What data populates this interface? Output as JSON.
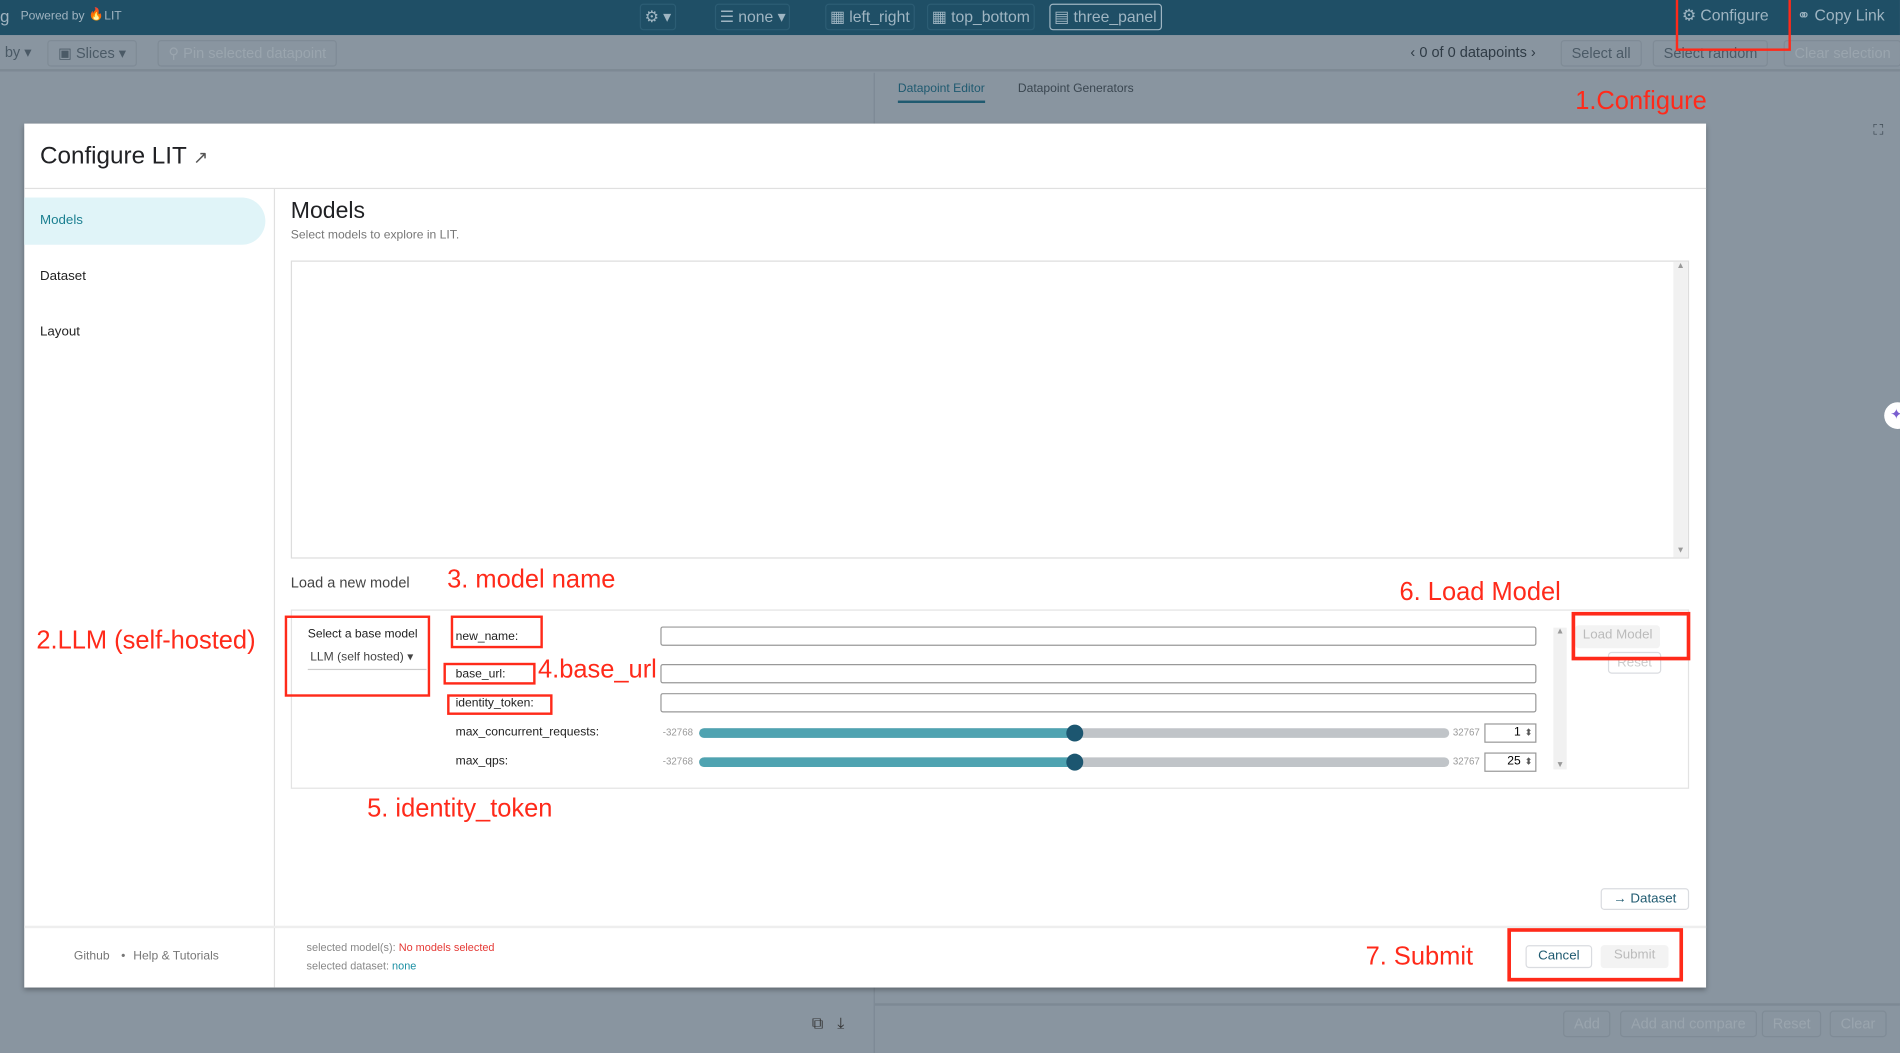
{
  "topbar": {
    "powered_by": "Powered by",
    "lit": "LIT",
    "model_select": "none",
    "layouts": [
      "left_right",
      "top_bottom",
      "three_panel"
    ],
    "configure": "Configure",
    "copy_link": "Copy Link",
    "app_letter": "g"
  },
  "toolbar": {
    "color_by": "by",
    "slices": "Slices",
    "pin": "Pin selected datapoint",
    "datapoint_count": "0 of 0 datapoints",
    "select_all": "Select all",
    "select_random": "Select random",
    "clear_selection": "Clear selection"
  },
  "right_panel": {
    "tabs": [
      "Datapoint Editor",
      "Datapoint Generators"
    ],
    "active_tab": 0,
    "bottom_buttons": [
      "Add",
      "Add and compare",
      "Reset",
      "Clear"
    ]
  },
  "modal": {
    "title": "Configure LIT",
    "sidebar": [
      {
        "label": "Models",
        "active": true
      },
      {
        "label": "Dataset"
      },
      {
        "label": "Layout"
      }
    ],
    "section_title": "Models",
    "section_subtitle": "Select models to explore in LIT.",
    "load_title": "Load a new model",
    "base_model_label": "Select a base model",
    "base_model_value": "LLM (self hosted)",
    "fields": [
      {
        "label": "new_name:",
        "value": ""
      },
      {
        "label": "base_url:",
        "value": ""
      },
      {
        "label": "identity_token:",
        "value": ""
      }
    ],
    "sliders": [
      {
        "label": "max_concurrent_requests:",
        "min": "-32768",
        "max": "32767",
        "value": 1
      },
      {
        "label": "max_qps:",
        "min": "-32768",
        "max": "32767",
        "value": 25
      }
    ],
    "load_model": "Load Model",
    "reset": "Reset",
    "next_dataset": "→ Dataset",
    "footer": {
      "github": "Github",
      "sep": "•",
      "help": "Help & Tutorials",
      "models_label": "selected model(s):",
      "models_value": "No models selected",
      "dataset_label": "selected dataset:",
      "dataset_value": "none",
      "cancel": "Cancel",
      "submit": "Submit"
    }
  },
  "annotations": [
    "1.Configure",
    "2.LLM (self-hosted)",
    "3. model name",
    "4.base_url",
    "5. identity_token",
    "6. Load Model",
    "7. Submit"
  ],
  "colors": {
    "accent": "#1f4f66",
    "annotation": "#ff2a1a",
    "active_item": "#e0f4f8",
    "slider_fill": "#4fa3b1",
    "error": "#e53935",
    "link": "#1a8fa3"
  }
}
